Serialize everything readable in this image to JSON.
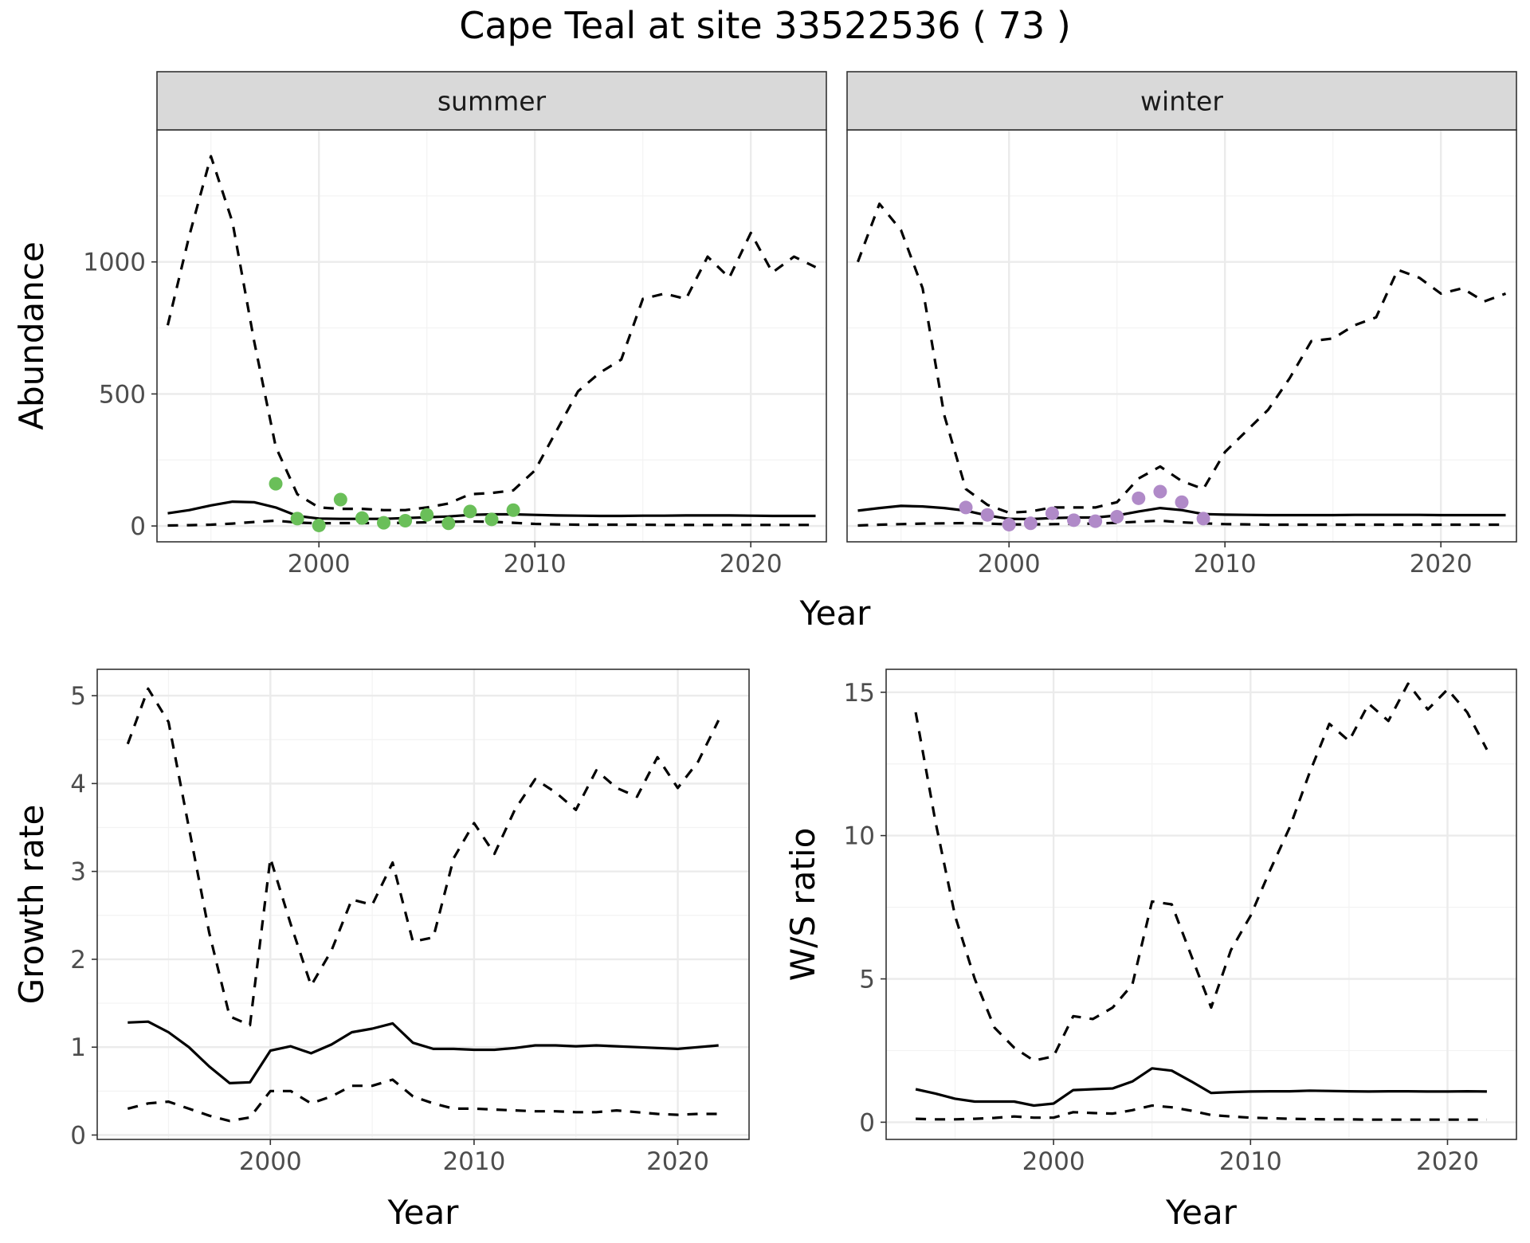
{
  "title": "Cape Teal at site 33522536 ( 73 )",
  "chart_data": [
    {
      "id": "abundance-summer",
      "type": "line",
      "strip": "summer",
      "ylabel": "Abundance",
      "xlim": [
        1992.5,
        2023.5
      ],
      "ylim": [
        -60,
        1500
      ],
      "xticks": [
        2000,
        2010,
        2020
      ],
      "yticks": [
        0,
        500,
        1000
      ],
      "point_color": "#6abf59",
      "series": [
        {
          "style": "dashed",
          "x": [
            1993,
            1994,
            1995,
            1996,
            1997,
            1998,
            1999,
            2000,
            2001,
            2002,
            2003,
            2004,
            2005,
            2006,
            2007,
            2008,
            2009,
            2010,
            2011,
            2012,
            2013,
            2014,
            2015,
            2016,
            2017,
            2018,
            2019,
            2020,
            2021,
            2022,
            2023
          ],
          "y": [
            760,
            1100,
            1400,
            1150,
            700,
            300,
            120,
            70,
            65,
            65,
            60,
            60,
            70,
            85,
            120,
            125,
            135,
            210,
            360,
            510,
            580,
            630,
            860,
            880,
            860,
            1020,
            940,
            1110,
            960,
            1020,
            980
          ]
        },
        {
          "style": "solid",
          "x": [
            1993,
            1994,
            1995,
            1996,
            1997,
            1998,
            1999,
            2000,
            2001,
            2002,
            2003,
            2004,
            2005,
            2006,
            2007,
            2008,
            2009,
            2010,
            2011,
            2012,
            2013,
            2014,
            2015,
            2016,
            2017,
            2018,
            2019,
            2020,
            2021,
            2022,
            2023
          ],
          "y": [
            48,
            60,
            78,
            92,
            90,
            70,
            38,
            28,
            27,
            27,
            27,
            30,
            33,
            36,
            42,
            44,
            44,
            42,
            40,
            39,
            38,
            38,
            39,
            39,
            40,
            40,
            40,
            39,
            38,
            38,
            38
          ]
        },
        {
          "style": "dashed",
          "x": [
            1993,
            1994,
            1995,
            1996,
            1997,
            1998,
            1999,
            2000,
            2001,
            2002,
            2003,
            2004,
            2005,
            2006,
            2007,
            2008,
            2009,
            2010,
            2011,
            2012,
            2013,
            2014,
            2015,
            2016,
            2017,
            2018,
            2019,
            2020,
            2021,
            2022,
            2023
          ],
          "y": [
            2,
            3,
            5,
            9,
            15,
            20,
            13,
            10,
            11,
            11,
            11,
            12,
            14,
            16,
            17,
            16,
            12,
            8,
            6,
            5,
            5,
            5,
            5,
            4,
            4,
            4,
            4,
            4,
            4,
            4,
            4
          ]
        }
      ],
      "points": {
        "x": [
          1998,
          1999,
          2000,
          2001,
          2002,
          2003,
          2004,
          2005,
          2006,
          2007,
          2008,
          2009
        ],
        "y": [
          160,
          28,
          2,
          100,
          30,
          12,
          20,
          42,
          10,
          55,
          25,
          60
        ]
      }
    },
    {
      "id": "abundance-winter",
      "type": "line",
      "strip": "winter",
      "ylabel": "",
      "xlim": [
        1992.5,
        2023.5
      ],
      "ylim": [
        -60,
        1500
      ],
      "xticks": [
        2000,
        2010,
        2020
      ],
      "yticks": [
        0,
        500,
        1000
      ],
      "point_color": "#b08ac8",
      "series": [
        {
          "style": "dashed",
          "x": [
            1993,
            1994,
            1995,
            1996,
            1997,
            1998,
            1999,
            2000,
            2001,
            2002,
            2003,
            2004,
            2005,
            2006,
            2007,
            2008,
            2009,
            2010,
            2011,
            2012,
            2013,
            2014,
            2015,
            2016,
            2017,
            2018,
            2019,
            2020,
            2021,
            2022,
            2023
          ],
          "y": [
            1000,
            1220,
            1120,
            900,
            420,
            140,
            80,
            50,
            55,
            70,
            70,
            70,
            90,
            180,
            225,
            170,
            140,
            280,
            360,
            440,
            560,
            700,
            710,
            760,
            790,
            970,
            940,
            880,
            900,
            850,
            880
          ]
        },
        {
          "style": "solid",
          "x": [
            1993,
            1994,
            1995,
            1996,
            1997,
            1998,
            1999,
            2000,
            2001,
            2002,
            2003,
            2004,
            2005,
            2006,
            2007,
            2008,
            2009,
            2010,
            2011,
            2012,
            2013,
            2014,
            2015,
            2016,
            2017,
            2018,
            2019,
            2020,
            2021,
            2022,
            2023
          ],
          "y": [
            58,
            68,
            76,
            74,
            68,
            58,
            40,
            27,
            26,
            30,
            32,
            32,
            40,
            55,
            68,
            60,
            45,
            43,
            42,
            41,
            41,
            41,
            41,
            42,
            42,
            42,
            42,
            41,
            41,
            41,
            41
          ]
        },
        {
          "style": "dashed",
          "x": [
            1993,
            1994,
            1995,
            1996,
            1997,
            1998,
            1999,
            2000,
            2001,
            2002,
            2003,
            2004,
            2005,
            2006,
            2007,
            2008,
            2009,
            2010,
            2011,
            2012,
            2013,
            2014,
            2015,
            2016,
            2017,
            2018,
            2019,
            2020,
            2021,
            2022,
            2023
          ],
          "y": [
            2,
            5,
            7,
            9,
            10,
            11,
            9,
            6,
            6,
            7,
            8,
            9,
            12,
            16,
            20,
            14,
            10,
            7,
            6,
            5,
            5,
            5,
            5,
            5,
            5,
            5,
            5,
            5,
            5,
            5,
            5
          ]
        }
      ],
      "points": {
        "x": [
          1998,
          1999,
          2000,
          2001,
          2002,
          2003,
          2004,
          2005,
          2006,
          2007,
          2008,
          2009
        ],
        "y": [
          70,
          42,
          5,
          10,
          48,
          22,
          18,
          35,
          105,
          130,
          90,
          28
        ]
      }
    },
    {
      "id": "growth-rate",
      "type": "line",
      "xlabel": "Year",
      "ylabel": "Growth rate",
      "xlim": [
        1991.5,
        2023.5
      ],
      "ylim": [
        -0.05,
        5.3
      ],
      "xticks": [
        2000,
        2010,
        2020
      ],
      "yticks": [
        0,
        1,
        2,
        3,
        4,
        5
      ],
      "series": [
        {
          "style": "dashed",
          "x": [
            1993,
            1994,
            1995,
            1996,
            1997,
            1998,
            1999,
            2000,
            2001,
            2002,
            2003,
            2004,
            2005,
            2006,
            2007,
            2008,
            2009,
            2010,
            2011,
            2012,
            2013,
            2014,
            2015,
            2016,
            2017,
            2018,
            2019,
            2020,
            2021,
            2022
          ],
          "y": [
            4.45,
            5.08,
            4.7,
            3.5,
            2.3,
            1.35,
            1.25,
            3.15,
            2.4,
            1.7,
            2.1,
            2.68,
            2.62,
            3.1,
            2.2,
            2.25,
            3.15,
            3.55,
            3.2,
            3.7,
            4.05,
            3.9,
            3.7,
            4.15,
            3.95,
            3.85,
            4.3,
            3.95,
            4.25,
            4.72
          ]
        },
        {
          "style": "solid",
          "x": [
            1993,
            1994,
            1995,
            1996,
            1997,
            1998,
            1999,
            2000,
            2001,
            2002,
            2003,
            2004,
            2005,
            2006,
            2007,
            2008,
            2009,
            2010,
            2011,
            2012,
            2013,
            2014,
            2015,
            2016,
            2017,
            2018,
            2019,
            2020,
            2021,
            2022
          ],
          "y": [
            1.28,
            1.29,
            1.17,
            1.0,
            0.78,
            0.59,
            0.6,
            0.96,
            1.01,
            0.93,
            1.03,
            1.17,
            1.21,
            1.27,
            1.05,
            0.98,
            0.98,
            0.97,
            0.97,
            0.99,
            1.02,
            1.02,
            1.01,
            1.02,
            1.01,
            1.0,
            0.99,
            0.98,
            1.0,
            1.02
          ]
        },
        {
          "style": "dashed",
          "x": [
            1993,
            1994,
            1995,
            1996,
            1997,
            1998,
            1999,
            2000,
            2001,
            2002,
            2003,
            2004,
            2005,
            2006,
            2007,
            2008,
            2009,
            2010,
            2011,
            2012,
            2013,
            2014,
            2015,
            2016,
            2017,
            2018,
            2019,
            2020,
            2021,
            2022
          ],
          "y": [
            0.3,
            0.36,
            0.38,
            0.3,
            0.22,
            0.16,
            0.2,
            0.5,
            0.5,
            0.36,
            0.44,
            0.56,
            0.56,
            0.63,
            0.44,
            0.36,
            0.3,
            0.3,
            0.29,
            0.28,
            0.27,
            0.27,
            0.26,
            0.26,
            0.28,
            0.26,
            0.24,
            0.23,
            0.24,
            0.24
          ]
        }
      ]
    },
    {
      "id": "ws-ratio",
      "type": "line",
      "xlabel": "Year",
      "ylabel": "W/S ratio",
      "xlim": [
        1991.5,
        2023.5
      ],
      "ylim": [
        -0.6,
        15.8
      ],
      "xticks": [
        2000,
        2010,
        2020
      ],
      "yticks": [
        0,
        5,
        10,
        15
      ],
      "series": [
        {
          "style": "dashed",
          "x": [
            1993,
            1994,
            1995,
            1996,
            1997,
            1998,
            1999,
            2000,
            2001,
            2002,
            2003,
            2004,
            2005,
            2006,
            2007,
            2008,
            2009,
            2010,
            2011,
            2012,
            2013,
            2014,
            2015,
            2016,
            2017,
            2018,
            2019,
            2020,
            2021,
            2022
          ],
          "y": [
            14.3,
            10.5,
            7.2,
            5.0,
            3.3,
            2.6,
            2.15,
            2.3,
            3.7,
            3.6,
            4.0,
            4.8,
            7.7,
            7.6,
            5.8,
            4.0,
            6.0,
            7.2,
            8.8,
            10.3,
            12.2,
            13.9,
            13.3,
            14.6,
            14.0,
            15.3,
            14.4,
            15.1,
            14.3,
            13.0
          ]
        },
        {
          "style": "solid",
          "x": [
            1993,
            1994,
            1995,
            1996,
            1997,
            1998,
            1999,
            2000,
            2001,
            2002,
            2003,
            2004,
            2005,
            2006,
            2007,
            2008,
            2009,
            2010,
            2011,
            2012,
            2013,
            2014,
            2015,
            2016,
            2017,
            2018,
            2019,
            2020,
            2021,
            2022
          ],
          "y": [
            1.15,
            1.0,
            0.82,
            0.72,
            0.72,
            0.72,
            0.58,
            0.65,
            1.12,
            1.15,
            1.18,
            1.42,
            1.88,
            1.8,
            1.42,
            1.02,
            1.05,
            1.07,
            1.08,
            1.08,
            1.1,
            1.09,
            1.08,
            1.07,
            1.08,
            1.08,
            1.07,
            1.07,
            1.08,
            1.07
          ]
        },
        {
          "style": "dashed",
          "x": [
            1993,
            1994,
            1995,
            1996,
            1997,
            1998,
            1999,
            2000,
            2001,
            2002,
            2003,
            2004,
            2005,
            2006,
            2007,
            2008,
            2009,
            2010,
            2011,
            2012,
            2013,
            2014,
            2015,
            2016,
            2017,
            2018,
            2019,
            2020,
            2021,
            2022
          ],
          "y": [
            0.12,
            0.1,
            0.1,
            0.12,
            0.15,
            0.2,
            0.16,
            0.16,
            0.35,
            0.32,
            0.3,
            0.42,
            0.58,
            0.52,
            0.4,
            0.25,
            0.2,
            0.16,
            0.14,
            0.12,
            0.11,
            0.1,
            0.1,
            0.09,
            0.09,
            0.09,
            0.09,
            0.09,
            0.09,
            0.09
          ]
        }
      ]
    }
  ],
  "top_xlabel": "Year"
}
